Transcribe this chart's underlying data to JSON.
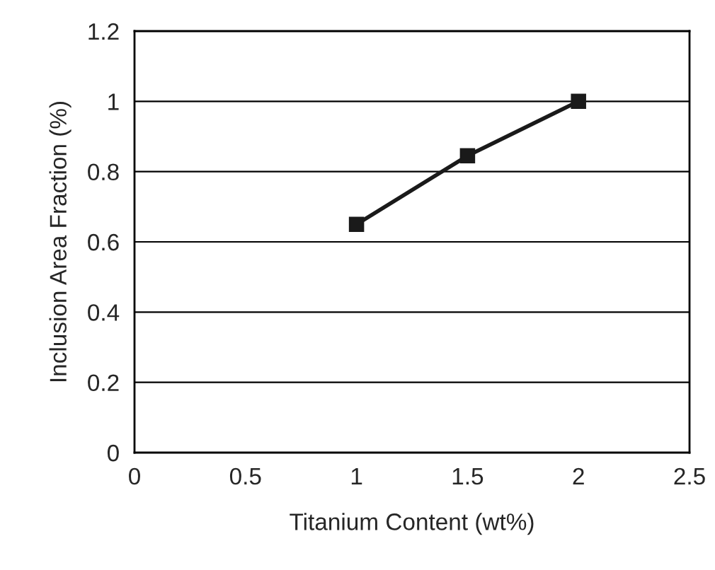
{
  "chart_data": {
    "type": "line",
    "xlabel": "Titanium Content (wt%)",
    "ylabel": "Inclusion Area Fraction (%)",
    "x": [
      1,
      1.5,
      2
    ],
    "series": [
      {
        "color": "#1a1a1a",
        "values": [
          0.65,
          0.845,
          1.0
        ]
      }
    ],
    "xlim": [
      0,
      2.5
    ],
    "xticks": [
      0,
      0.5,
      1,
      1.5,
      2,
      2.5
    ],
    "ylim": [
      0,
      1.2
    ],
    "yticks": [
      0,
      0.2,
      0.4,
      0.6,
      0.8,
      1,
      1.2
    ],
    "grid": "y",
    "marker": "square",
    "line_style": "solid"
  }
}
